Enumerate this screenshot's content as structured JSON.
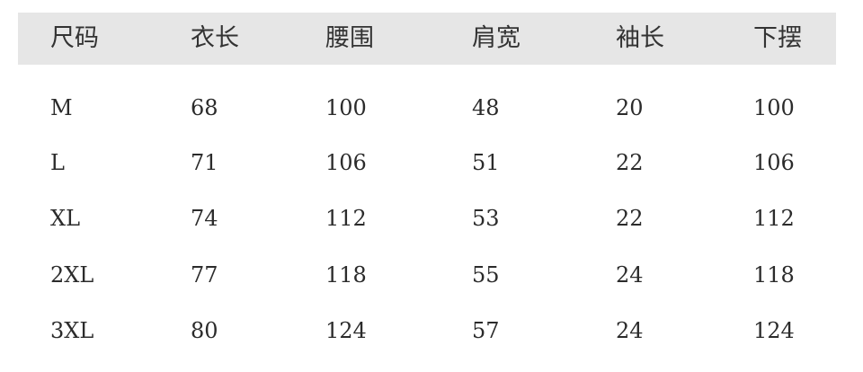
{
  "table": {
    "headers": [
      "尺码",
      "衣长",
      "腰围",
      "肩宽",
      "袖长",
      "下摆"
    ],
    "rows": [
      [
        "M",
        "68",
        "100",
        "48",
        "20",
        "100"
      ],
      [
        "L",
        "71",
        "106",
        "51",
        "22",
        "106"
      ],
      [
        "XL",
        "74",
        "112",
        "53",
        "22",
        "112"
      ],
      [
        "2XL",
        "77",
        "118",
        "55",
        "24",
        "118"
      ],
      [
        "3XL",
        "80",
        "124",
        "57",
        "24",
        "124"
      ]
    ],
    "header_background": "#e6e6e6"
  }
}
